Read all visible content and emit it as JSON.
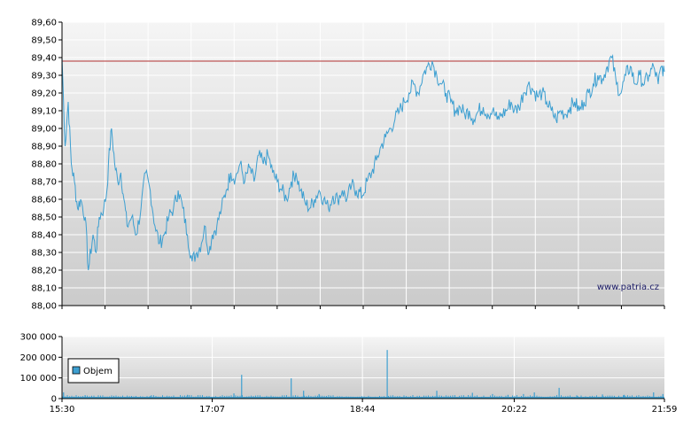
{
  "watermark": "www.patria.cz",
  "colors": {
    "price_line": "#3d9fd1",
    "reference_line": "#b03030",
    "volume": "#3d9fd1",
    "grid": "#ffffff"
  },
  "chart_data": [
    {
      "type": "line",
      "name": "price",
      "ylim": [
        88.0,
        89.6
      ],
      "yticks": [
        "88,00",
        "88,10",
        "88,20",
        "88,30",
        "88,40",
        "88,50",
        "88,60",
        "88,70",
        "88,80",
        "88,90",
        "89,00",
        "89,10",
        "89,20",
        "89,30",
        "89,40",
        "89,50",
        "89,60"
      ],
      "reference_value": 89.38,
      "time_range": [
        "15:30",
        "21:59"
      ],
      "anchors": [
        [
          "15:30",
          89.4
        ],
        [
          "15:32",
          88.9
        ],
        [
          "15:34",
          89.15
        ],
        [
          "15:36",
          88.8
        ],
        [
          "15:38",
          88.7
        ],
        [
          "15:40",
          88.55
        ],
        [
          "15:42",
          88.6
        ],
        [
          "15:45",
          88.5
        ],
        [
          "15:47",
          88.2
        ],
        [
          "15:50",
          88.4
        ],
        [
          "15:52",
          88.3
        ],
        [
          "15:54",
          88.5
        ],
        [
          "15:57",
          88.55
        ],
        [
          "15:59",
          88.65
        ],
        [
          "16:00",
          88.8
        ],
        [
          "16:02",
          89.0
        ],
        [
          "16:04",
          88.8
        ],
        [
          "16:06",
          88.7
        ],
        [
          "16:08",
          88.75
        ],
        [
          "16:10",
          88.6
        ],
        [
          "16:12",
          88.45
        ],
        [
          "16:15",
          88.5
        ],
        [
          "16:18",
          88.4
        ],
        [
          "16:21",
          88.55
        ],
        [
          "16:24",
          88.75
        ],
        [
          "16:27",
          88.65
        ],
        [
          "16:30",
          88.45
        ],
        [
          "16:33",
          88.35
        ],
        [
          "16:36",
          88.4
        ],
        [
          "16:39",
          88.5
        ],
        [
          "16:42",
          88.55
        ],
        [
          "16:45",
          88.65
        ],
        [
          "16:48",
          88.55
        ],
        [
          "16:51",
          88.4
        ],
        [
          "16:54",
          88.25
        ],
        [
          "16:57",
          88.3
        ],
        [
          "17:00",
          88.35
        ],
        [
          "17:02",
          88.45
        ],
        [
          "17:05",
          88.3
        ],
        [
          "17:07",
          88.4
        ],
        [
          "17:10",
          88.45
        ],
        [
          "17:13",
          88.55
        ],
        [
          "17:16",
          88.65
        ],
        [
          "17:19",
          88.75
        ],
        [
          "17:22",
          88.72
        ],
        [
          "17:25",
          88.8
        ],
        [
          "17:28",
          88.7
        ],
        [
          "17:31",
          88.78
        ],
        [
          "17:34",
          88.7
        ],
        [
          "17:37",
          88.85
        ],
        [
          "17:40",
          88.8
        ],
        [
          "17:43",
          88.85
        ],
        [
          "17:46",
          88.75
        ],
        [
          "17:49",
          88.7
        ],
        [
          "17:52",
          88.65
        ],
        [
          "17:55",
          88.6
        ],
        [
          "17:58",
          88.7
        ],
        [
          "18:01",
          88.75
        ],
        [
          "18:04",
          88.65
        ],
        [
          "18:07",
          88.58
        ],
        [
          "18:10",
          88.55
        ],
        [
          "18:13",
          88.6
        ],
        [
          "18:16",
          88.65
        ],
        [
          "18:19",
          88.6
        ],
        [
          "18:22",
          88.55
        ],
        [
          "18:25",
          88.62
        ],
        [
          "18:28",
          88.6
        ],
        [
          "18:31",
          88.65
        ],
        [
          "18:34",
          88.6
        ],
        [
          "18:37",
          88.68
        ],
        [
          "18:40",
          88.65
        ],
        [
          "18:44",
          88.62
        ],
        [
          "18:47",
          88.7
        ],
        [
          "18:50",
          88.75
        ],
        [
          "18:53",
          88.82
        ],
        [
          "18:56",
          88.9
        ],
        [
          "18:59",
          88.95
        ],
        [
          "19:02",
          89.0
        ],
        [
          "19:05",
          89.05
        ],
        [
          "19:08",
          89.1
        ],
        [
          "19:11",
          89.15
        ],
        [
          "19:14",
          89.2
        ],
        [
          "19:17",
          89.25
        ],
        [
          "19:20",
          89.2
        ],
        [
          "19:23",
          89.3
        ],
        [
          "19:26",
          89.35
        ],
        [
          "19:29",
          89.38
        ],
        [
          "19:32",
          89.3
        ],
        [
          "19:35",
          89.25
        ],
        [
          "19:38",
          89.2
        ],
        [
          "19:41",
          89.15
        ],
        [
          "19:44",
          89.1
        ],
        [
          "19:47",
          89.12
        ],
        [
          "19:50",
          89.08
        ],
        [
          "19:53",
          89.1
        ],
        [
          "19:56",
          89.05
        ],
        [
          "19:59",
          89.1
        ],
        [
          "20:02",
          89.12
        ],
        [
          "20:05",
          89.08
        ],
        [
          "20:08",
          89.1
        ],
        [
          "20:11",
          89.05
        ],
        [
          "20:14",
          89.08
        ],
        [
          "20:17",
          89.1
        ],
        [
          "20:20",
          89.15
        ],
        [
          "20:22",
          89.1
        ],
        [
          "20:25",
          89.12
        ],
        [
          "20:28",
          89.2
        ],
        [
          "20:31",
          89.25
        ],
        [
          "20:34",
          89.22
        ],
        [
          "20:37",
          89.18
        ],
        [
          "20:40",
          89.2
        ],
        [
          "20:43",
          89.15
        ],
        [
          "20:46",
          89.1
        ],
        [
          "20:49",
          89.05
        ],
        [
          "20:52",
          89.1
        ],
        [
          "20:55",
          89.08
        ],
        [
          "20:58",
          89.12
        ],
        [
          "21:01",
          89.15
        ],
        [
          "21:04",
          89.1
        ],
        [
          "21:07",
          89.15
        ],
        [
          "21:10",
          89.2
        ],
        [
          "21:13",
          89.25
        ],
        [
          "21:16",
          89.3
        ],
        [
          "21:19",
          89.28
        ],
        [
          "21:22",
          89.35
        ],
        [
          "21:25",
          89.4
        ],
        [
          "21:28",
          89.25
        ],
        [
          "21:31",
          89.2
        ],
        [
          "21:34",
          89.3
        ],
        [
          "21:37",
          89.35
        ],
        [
          "21:40",
          89.25
        ],
        [
          "21:43",
          89.3
        ],
        [
          "21:46",
          89.25
        ],
        [
          "21:49",
          89.3
        ],
        [
          "21:52",
          89.35
        ],
        [
          "21:55",
          89.25
        ],
        [
          "21:57",
          89.35
        ],
        [
          "21:59",
          89.32
        ]
      ]
    },
    {
      "type": "bar",
      "name": "volume",
      "legend": "Objem",
      "ylim": [
        0,
        300000
      ],
      "yticks": [
        "0",
        "100 000",
        "200 000",
        "300 000"
      ],
      "xticks": [
        "15:30",
        "17:07",
        "18:44",
        "20:22",
        "21:59"
      ],
      "baseline_volume": 8000,
      "spikes": [
        [
          "15:31",
          30000
        ],
        [
          "15:45",
          15000
        ],
        [
          "16:27",
          12000
        ],
        [
          "16:51",
          18000
        ],
        [
          "17:21",
          25000
        ],
        [
          "17:26",
          115000
        ],
        [
          "17:58",
          98000
        ],
        [
          "18:06",
          38000
        ],
        [
          "18:16",
          22000
        ],
        [
          "19:00",
          235000
        ],
        [
          "19:32",
          38000
        ],
        [
          "19:55",
          28000
        ],
        [
          "20:08",
          22000
        ],
        [
          "20:18",
          18000
        ],
        [
          "20:28",
          22000
        ],
        [
          "20:35",
          30000
        ],
        [
          "20:51",
          52000
        ],
        [
          "21:03",
          12000
        ],
        [
          "21:19",
          20000
        ],
        [
          "21:33",
          18000
        ],
        [
          "21:52",
          30000
        ],
        [
          "21:58",
          22000
        ]
      ]
    }
  ]
}
